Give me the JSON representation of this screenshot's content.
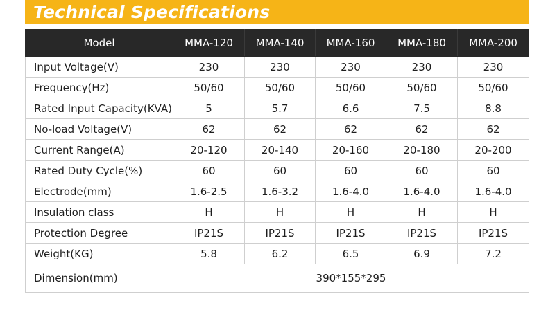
{
  "title": "Technical Specifications",
  "colors": {
    "banner": "#f6b417",
    "header_bg": "#282828",
    "border": "#cfcfcf"
  },
  "table": {
    "header": [
      "Model",
      "MMA-120",
      "MMA-140",
      "MMA-160",
      "MMA-180",
      "MMA-200"
    ],
    "rows": [
      {
        "label": "Input Voltage(V)",
        "values": [
          "230",
          "230",
          "230",
          "230",
          "230"
        ]
      },
      {
        "label": "Frequency(Hz)",
        "values": [
          "50/60",
          "50/60",
          "50/60",
          "50/60",
          "50/60"
        ]
      },
      {
        "label": "Rated Input Capacity(KVA)",
        "values": [
          "5",
          "5.7",
          "6.6",
          "7.5",
          "8.8"
        ]
      },
      {
        "label": "No-load Voltage(V)",
        "values": [
          "62",
          "62",
          "62",
          "62",
          "62"
        ]
      },
      {
        "label": "Current Range(A)",
        "values": [
          "20-120",
          "20-140",
          "20-160",
          "20-180",
          "20-200"
        ]
      },
      {
        "label": "Rated Duty Cycle(%)",
        "values": [
          "60",
          "60",
          "60",
          "60",
          "60"
        ]
      },
      {
        "label": "Electrode(mm)",
        "values": [
          "1.6-2.5",
          "1.6-3.2",
          "1.6-4.0",
          "1.6-4.0",
          "1.6-4.0"
        ]
      },
      {
        "label": "Insulation class",
        "values": [
          "H",
          "H",
          "H",
          "H",
          "H"
        ]
      },
      {
        "label": "Protection Degree",
        "values": [
          "IP21S",
          "IP21S",
          "IP21S",
          "IP21S",
          "IP21S"
        ]
      },
      {
        "label": "Weight(KG)",
        "values": [
          "5.8",
          "6.2",
          "6.5",
          "6.9",
          "7.2"
        ]
      }
    ],
    "dimension": {
      "label": "Dimension(mm)",
      "value": "390*155*295"
    }
  }
}
